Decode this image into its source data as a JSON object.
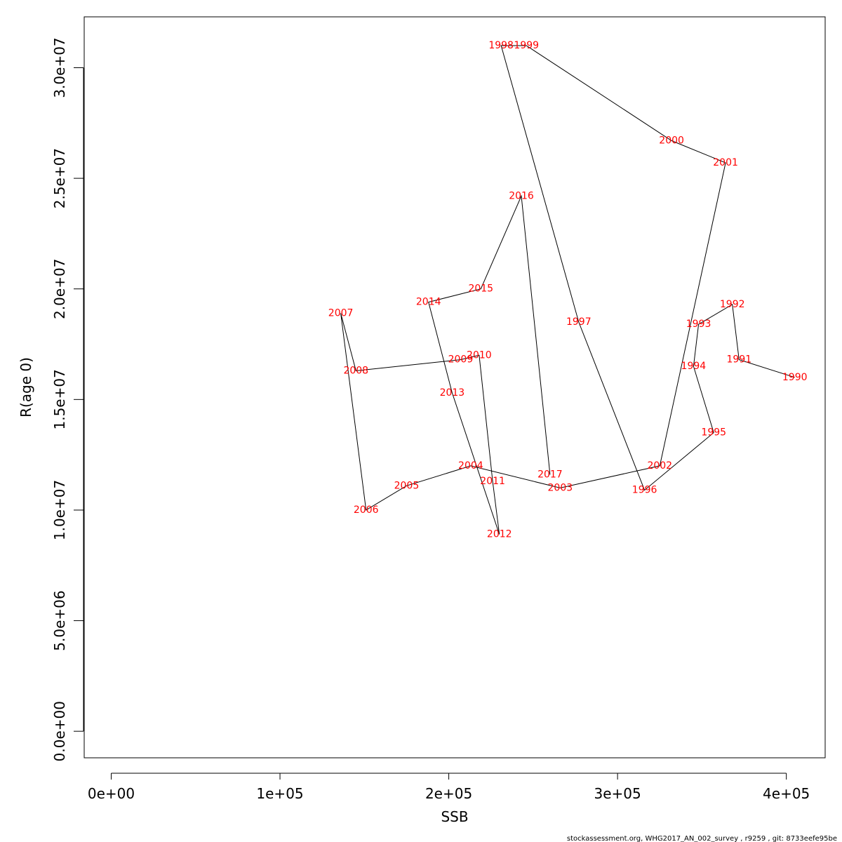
{
  "chart_data": {
    "type": "line",
    "xlabel": "SSB",
    "ylabel": "R(age 0)",
    "xlim": [
      -16000,
      423000
    ],
    "ylim": [
      -1200000,
      32300000
    ],
    "x_ticks": [
      0,
      100000,
      200000,
      300000,
      400000
    ],
    "x_tick_labels": [
      "0e+00",
      "1e+05",
      "2e+05",
      "3e+05",
      "4e+05"
    ],
    "y_ticks": [
      0,
      5000000,
      10000000,
      15000000,
      20000000,
      25000000,
      30000000
    ],
    "y_tick_labels": [
      "0.0e+00",
      "5.0e+06",
      "1.0e+07",
      "1.5e+07",
      "2.0e+07",
      "2.5e+07",
      "3.0e+07"
    ],
    "line_color": "#000000",
    "label_color": "#ff0000",
    "grid": false,
    "points": [
      {
        "year": "1990",
        "x": 405000,
        "y": 16000000
      },
      {
        "year": "1991",
        "x": 372000,
        "y": 16800000
      },
      {
        "year": "1992",
        "x": 368000,
        "y": 19300000
      },
      {
        "year": "1993",
        "x": 348000,
        "y": 18400000
      },
      {
        "year": "1994",
        "x": 345000,
        "y": 16500000
      },
      {
        "year": "1995",
        "x": 357000,
        "y": 13500000
      },
      {
        "year": "1996",
        "x": 316000,
        "y": 10900000
      },
      {
        "year": "1997",
        "x": 277000,
        "y": 18500000
      },
      {
        "year": "1998",
        "x": 231000,
        "y": 31000000
      },
      {
        "year": "1999",
        "x": 246000,
        "y": 31000000
      },
      {
        "year": "2000",
        "x": 332000,
        "y": 26700000
      },
      {
        "year": "2001",
        "x": 364000,
        "y": 25700000
      },
      {
        "year": "2002",
        "x": 325000,
        "y": 12000000
      },
      {
        "year": "2003",
        "x": 266000,
        "y": 11000000
      },
      {
        "year": "2004",
        "x": 213000,
        "y": 12000000
      },
      {
        "year": "2005",
        "x": 175000,
        "y": 11100000
      },
      {
        "year": "2006",
        "x": 151000,
        "y": 10000000
      },
      {
        "year": "2007",
        "x": 136000,
        "y": 18900000
      },
      {
        "year": "2008",
        "x": 145000,
        "y": 16300000
      },
      {
        "year": "2009",
        "x": 207000,
        "y": 16800000
      },
      {
        "year": "2010",
        "x": 218000,
        "y": 17000000
      },
      {
        "year": "2011",
        "x": 226000,
        "y": 11300000
      },
      {
        "year": "2012",
        "x": 230000,
        "y": 8900000
      },
      {
        "year": "2013",
        "x": 202000,
        "y": 15300000
      },
      {
        "year": "2014",
        "x": 188000,
        "y": 19400000
      },
      {
        "year": "2015",
        "x": 219000,
        "y": 20000000
      },
      {
        "year": "2016",
        "x": 243000,
        "y": 24200000
      },
      {
        "year": "2017",
        "x": 260000,
        "y": 11600000
      }
    ]
  },
  "footer": "stockassessment.org, WHG2017_AN_002_survey , r9259 , git: 8733eefe95be"
}
